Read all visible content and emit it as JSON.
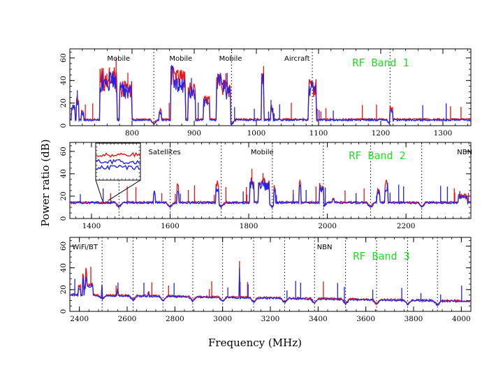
{
  "figure": {
    "xlabel": "Frequency (MHz)",
    "ylabel": "Power ratio (dB)"
  },
  "colors": {
    "series_red": "#ee1111",
    "series_blue": "#2222ee",
    "band_title": "#22dd22"
  },
  "chart_data": [
    {
      "type": "line",
      "title": "RF Band 1",
      "xlim": [
        700,
        1345
      ],
      "ylim": [
        0,
        68
      ],
      "xticks": [
        800,
        900,
        1000,
        1100,
        1200,
        1300
      ],
      "yticks": [
        0,
        20,
        40,
        60
      ],
      "markers": [
        835,
        960,
        1090,
        1215
      ],
      "annotations": [
        {
          "text": "Mobile",
          "x": 760
        },
        {
          "text": "Mobile",
          "x": 860
        },
        {
          "text": "Mobile",
          "x": 940
        },
        {
          "text": "Aircraft",
          "x": 1045
        }
      ],
      "baseline": 5,
      "series": [
        {
          "color": "red",
          "peaks": [
            [
              705,
              18,
              3
            ],
            [
              712,
              28,
              2
            ],
            [
              720,
              14,
              2
            ],
            [
              762,
              52,
              14
            ],
            [
              790,
              40,
              10
            ],
            [
              845,
              18,
              2
            ],
            [
              866,
              60,
              4
            ],
            [
              876,
              50,
              10
            ],
            [
              896,
              40,
              6
            ],
            [
              920,
              28,
              5
            ],
            [
              940,
              48,
              4
            ],
            [
              948,
              44,
              4
            ],
            [
              955,
              40,
              3
            ],
            [
              1010,
              50,
              2
            ],
            [
              1025,
              18,
              2
            ],
            [
              1090,
              42,
              6
            ],
            [
              1217,
              18,
              2
            ]
          ]
        },
        {
          "color": "blue",
          "peaks": [
            [
              705,
              20,
              3
            ],
            [
              712,
              26,
              2
            ],
            [
              720,
              12,
              2
            ],
            [
              762,
              48,
              14
            ],
            [
              790,
              38,
              10
            ],
            [
              845,
              14,
              2
            ],
            [
              866,
              55,
              4
            ],
            [
              876,
              46,
              10
            ],
            [
              896,
              38,
              6
            ],
            [
              920,
              25,
              5
            ],
            [
              940,
              46,
              4
            ],
            [
              948,
              42,
              4
            ],
            [
              955,
              38,
              3
            ],
            [
              1010,
              48,
              2
            ],
            [
              1025,
              16,
              2
            ],
            [
              1090,
              40,
              6
            ],
            [
              1217,
              16,
              2
            ]
          ]
        }
      ]
    },
    {
      "type": "line",
      "title": "RF Band 2",
      "xlim": [
        1345,
        2365
      ],
      "ylim": [
        0,
        68
      ],
      "xticks": [
        1400,
        1600,
        1800,
        2000,
        2200
      ],
      "yticks": [
        0,
        20,
        40,
        60
      ],
      "markers": [
        1470,
        1600,
        1730,
        1860,
        1990,
        2110,
        2240
      ],
      "annotations": [
        {
          "text": "Satellites",
          "x": 1545
        },
        {
          "text": "Mobile",
          "x": 1805
        },
        {
          "text": "NBN",
          "x": 2330
        }
      ],
      "baseline": 14,
      "series": [
        {
          "color": "red",
          "peaks": [
            [
              1560,
              28,
              2
            ],
            [
              1620,
              32,
              2
            ],
            [
              1720,
              34,
              4
            ],
            [
              1808,
              38,
              6
            ],
            [
              1838,
              36,
              14
            ],
            [
              1866,
              30,
              3
            ],
            [
              1930,
              34,
              2
            ],
            [
              1985,
              32,
              6
            ],
            [
              2015,
              20,
              3
            ],
            [
              2130,
              28,
              4
            ],
            [
              2150,
              36,
              4
            ],
            [
              2345,
              22,
              12
            ]
          ]
        },
        {
          "color": "blue",
          "peaks": [
            [
              1560,
              25,
              2
            ],
            [
              1620,
              28,
              2
            ],
            [
              1720,
              32,
              4
            ],
            [
              1808,
              36,
              6
            ],
            [
              1838,
              34,
              14
            ],
            [
              1866,
              28,
              3
            ],
            [
              1930,
              32,
              2
            ],
            [
              1985,
              30,
              6
            ],
            [
              2015,
              18,
              3
            ],
            [
              2130,
              26,
              4
            ],
            [
              2150,
              32,
              4
            ],
            [
              2345,
              20,
              12
            ]
          ]
        }
      ],
      "inset": {
        "x_center": 1435,
        "ylim": [
          40,
          70
        ]
      }
    },
    {
      "type": "line",
      "title": "RF Band 3",
      "xlim": [
        2360,
        4040
      ],
      "ylim": [
        0,
        68
      ],
      "xticks": [
        2400,
        2600,
        2800,
        3000,
        3200,
        3400,
        3600,
        3800,
        4000
      ],
      "yticks": [
        0,
        20,
        40,
        60
      ],
      "markers": [
        2495,
        2625,
        2750,
        2875,
        3000,
        3130,
        3260,
        3385,
        3515,
        3645,
        3775,
        3900
      ],
      "annotations": [
        {
          "text": "WiFi/BT",
          "x": 2370
        },
        {
          "text": "NBN",
          "x": 3395
        }
      ],
      "baseline": 15,
      "series": [
        {
          "color": "red",
          "peaks": [
            [
              2400,
              26,
              6
            ],
            [
              2415,
              35,
              3
            ],
            [
              2428,
              42,
              3
            ],
            [
              2440,
              28,
              18
            ],
            [
              2494,
              32,
              2
            ],
            [
              2560,
              22,
              2
            ],
            [
              2690,
              20,
              2
            ],
            [
              3070,
              48,
              1
            ]
          ]
        },
        {
          "color": "blue",
          "peaks": [
            [
              2400,
              24,
              6
            ],
            [
              2415,
              33,
              3
            ],
            [
              2428,
              40,
              3
            ],
            [
              2440,
              26,
              18
            ],
            [
              2494,
              30,
              2
            ],
            [
              2560,
              20,
              2
            ],
            [
              2690,
              18,
              2
            ],
            [
              3070,
              46,
              1
            ]
          ]
        }
      ]
    }
  ]
}
